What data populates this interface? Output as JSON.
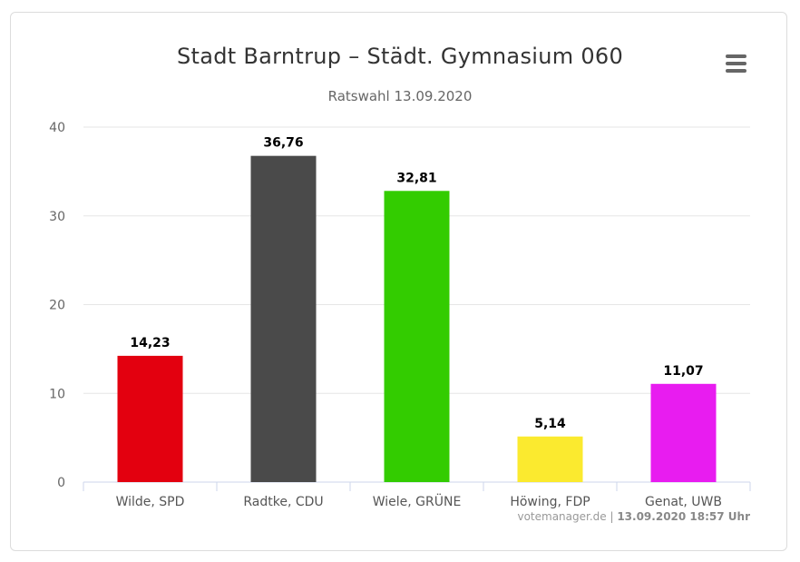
{
  "chart_data": {
    "type": "bar",
    "title": "Stadt Barntrup – Städt. Gymnasium 060",
    "subtitle": "Ratswahl 13.09.2020",
    "categories": [
      "Wilde, SPD",
      "Radtke, CDU",
      "Wiele, GRÜNE",
      "Höwing, FDP",
      "Genat, UWB"
    ],
    "values": [
      14.23,
      36.76,
      32.81,
      5.14,
      11.07
    ],
    "value_labels": [
      "14,23",
      "36,76",
      "32,81",
      "5,14",
      "11,07"
    ],
    "colors": [
      "#e3000f",
      "#4a4a4a",
      "#33cc00",
      "#fbea2f",
      "#e81cf0"
    ],
    "ylim": [
      0,
      40
    ],
    "yticks": [
      "0",
      "10",
      "20",
      "30",
      "40"
    ],
    "grid": true,
    "xlabel": "",
    "ylabel": ""
  },
  "credits": {
    "source": "votemanager.de",
    "separator": " | ",
    "timestamp": "13.09.2020 18:57 Uhr"
  },
  "menu": {
    "icon": "hamburger-menu-icon"
  }
}
